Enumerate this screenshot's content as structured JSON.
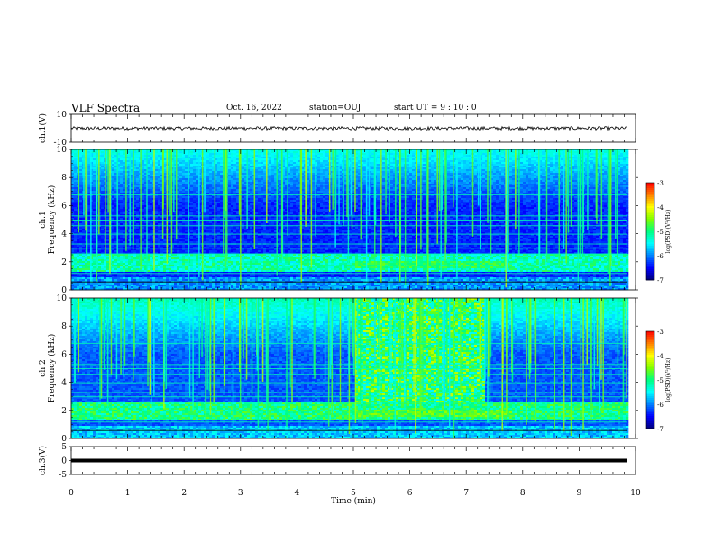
{
  "header": {
    "title": "VLF Spectra",
    "date": "Oct. 16, 2022",
    "station": "station=OUJ",
    "start_ut": "start  UT =  9 : 10 : 0"
  },
  "chart_data": [
    {
      "type": "line",
      "name": "ch1-waveform",
      "ylabel": "ch.1(V)",
      "ylim": [
        -10,
        10
      ],
      "yticks": [
        "10",
        "-10"
      ],
      "signal_level": 0,
      "signal_amplitude": 1.2
    },
    {
      "type": "heatmap",
      "name": "ch1-spectrogram",
      "ylabel_lines": [
        "ch.1",
        "Frequency  (kHz)"
      ],
      "ylim": [
        0,
        10
      ],
      "yticks": [
        "0",
        "2",
        "4",
        "6",
        "8",
        "10"
      ],
      "colorbar": {
        "label": "log(PSD)(V²/Hz)",
        "ticks": [
          "-3",
          "-4",
          "-5",
          "-6",
          "-7"
        ],
        "range": [
          -7,
          -3
        ]
      }
    },
    {
      "type": "heatmap",
      "name": "ch2-spectrogram",
      "ylabel_lines": [
        "ch.2",
        "Frequency  (kHz)"
      ],
      "ylim": [
        0,
        10
      ],
      "yticks": [
        "0",
        "2",
        "4",
        "6",
        "8",
        "10"
      ],
      "colorbar": {
        "label": "log(PSD)(V²/Hz)",
        "ticks": [
          "-3",
          "-4",
          "-5",
          "-6",
          "-7"
        ],
        "range": [
          -7,
          -3
        ]
      }
    },
    {
      "type": "line",
      "name": "ch3-waveform",
      "ylabel": "ch.3(V)",
      "ylim": [
        -5,
        5
      ],
      "yticks": [
        "5",
        "0",
        "-5"
      ],
      "signal_level": 0
    }
  ],
  "xaxis": {
    "label": "Time  (min)",
    "range": [
      0,
      10
    ],
    "ticks": [
      "0",
      "1",
      "2",
      "3",
      "4",
      "5",
      "6",
      "7",
      "8",
      "9",
      "10"
    ],
    "data_end": 9.85
  },
  "colors": {
    "colormap": [
      "#00007a",
      "#0000ff",
      "#0080ff",
      "#00ffff",
      "#00ff80",
      "#80ff00",
      "#ffff00",
      "#ff8000",
      "#ff0000",
      "#ffffff"
    ]
  }
}
